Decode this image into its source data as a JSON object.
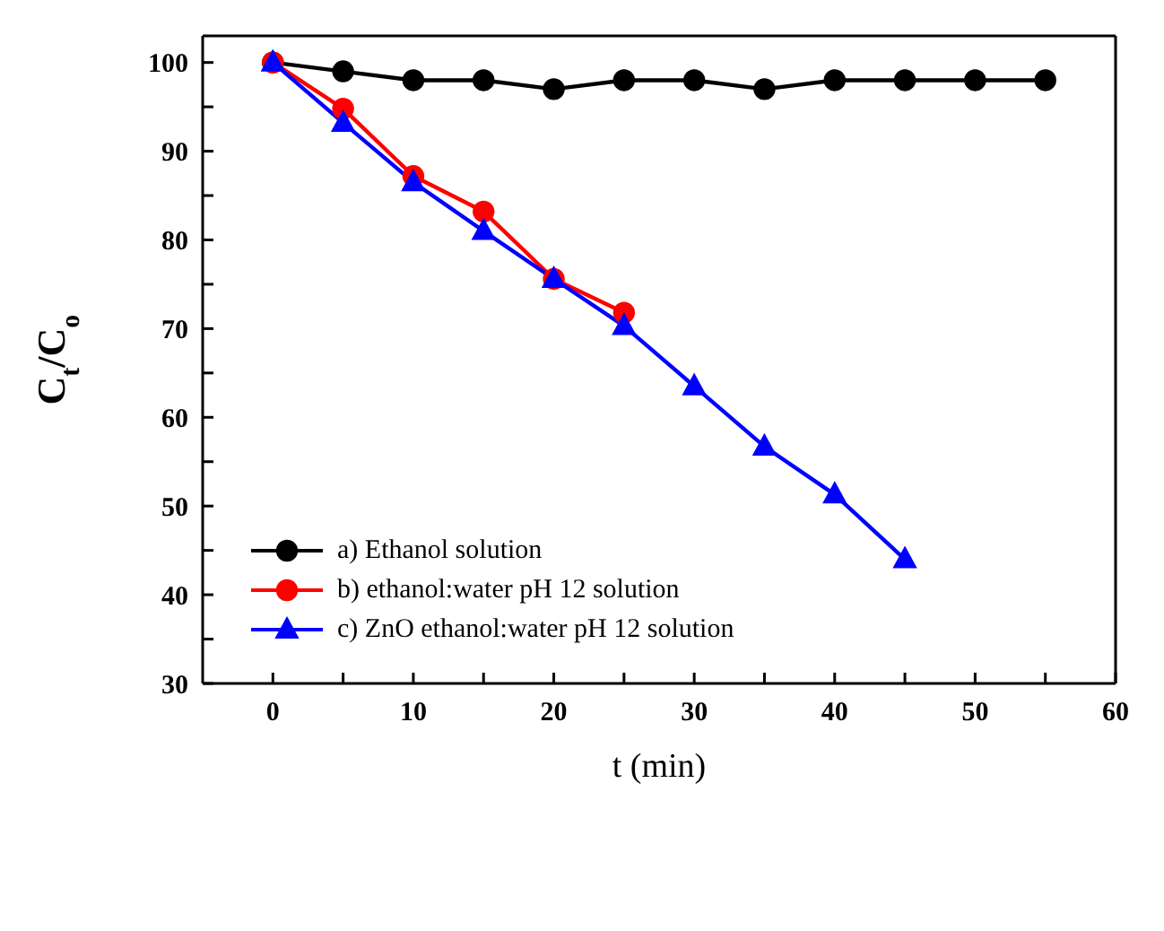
{
  "chart_data": {
    "type": "line",
    "xlabel": "t (min)",
    "ylabel": "C$_{t}$/C$_{o}$",
    "xlim": [
      -5,
      60
    ],
    "xticks": [
      0,
      {
        "value": 5,
        "label": null
      },
      10,
      {
        "value": 15,
        "label": null
      },
      20,
      {
        "value": 25,
        "label": null
      },
      30,
      {
        "value": 35,
        "label": null
      },
      40,
      {
        "value": 45,
        "label": null
      },
      50,
      {
        "value": 55,
        "label": null
      },
      60
    ],
    "ylim": [
      30,
      103
    ],
    "yticks": [
      30,
      {
        "value": 35,
        "label": null
      },
      40,
      {
        "value": 45,
        "label": null
      },
      50,
      {
        "value": 55,
        "label": null
      },
      60,
      {
        "value": 65,
        "label": null
      },
      70,
      {
        "value": 75,
        "label": null
      },
      80,
      {
        "value": 85,
        "label": null
      },
      90,
      {
        "value": 95,
        "label": null
      },
      100
    ],
    "grid": false,
    "legend": "bottom left",
    "line_style": "solid",
    "series": [
      {
        "name": "a) Ethanol solution",
        "color": "#000000",
        "marker": "circle",
        "x": [
          0,
          5,
          10,
          15,
          20,
          25,
          30,
          35,
          40,
          45,
          50,
          55
        ],
        "values": [
          100,
          99,
          98,
          98,
          97,
          98,
          98,
          97,
          98,
          98,
          98,
          98
        ]
      },
      {
        "name": "b) ethanol:water pH 12 solution",
        "color": "#ff0000",
        "marker": "circle",
        "x": [
          0,
          5,
          10,
          15,
          20,
          25
        ],
        "values": [
          100,
          94.8,
          87.2,
          83.2,
          75.6,
          71.8
        ]
      },
      {
        "name": "c) ZnO ethanol:water pH 12 solution",
        "color": "#0000ff",
        "marker": "triangle",
        "x": [
          0,
          5,
          10,
          15,
          20,
          25,
          30,
          35,
          40,
          45
        ],
        "values": [
          100,
          93.2,
          86.5,
          81,
          75.6,
          70.3,
          63.5,
          56.7,
          51.3,
          44
        ]
      }
    ]
  }
}
